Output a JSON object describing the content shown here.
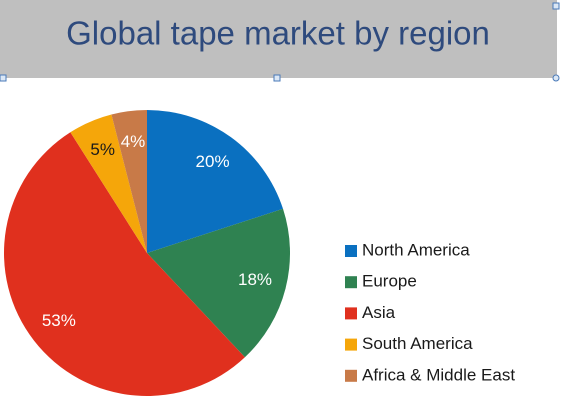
{
  "chart_data": {
    "type": "pie",
    "title": "Global tape market by region",
    "categories": [
      "North America",
      "Europe",
      "Asia",
      "South America",
      "Africa & Middle East"
    ],
    "values": [
      20,
      18,
      53,
      5,
      4
    ],
    "value_labels": [
      "20%",
      "18%",
      "53%",
      "5%",
      "4%"
    ],
    "colors": [
      "#0a70c0",
      "#2f8251",
      "#e0301e",
      "#f5a60a",
      "#c87a48"
    ],
    "legend": "right"
  }
}
